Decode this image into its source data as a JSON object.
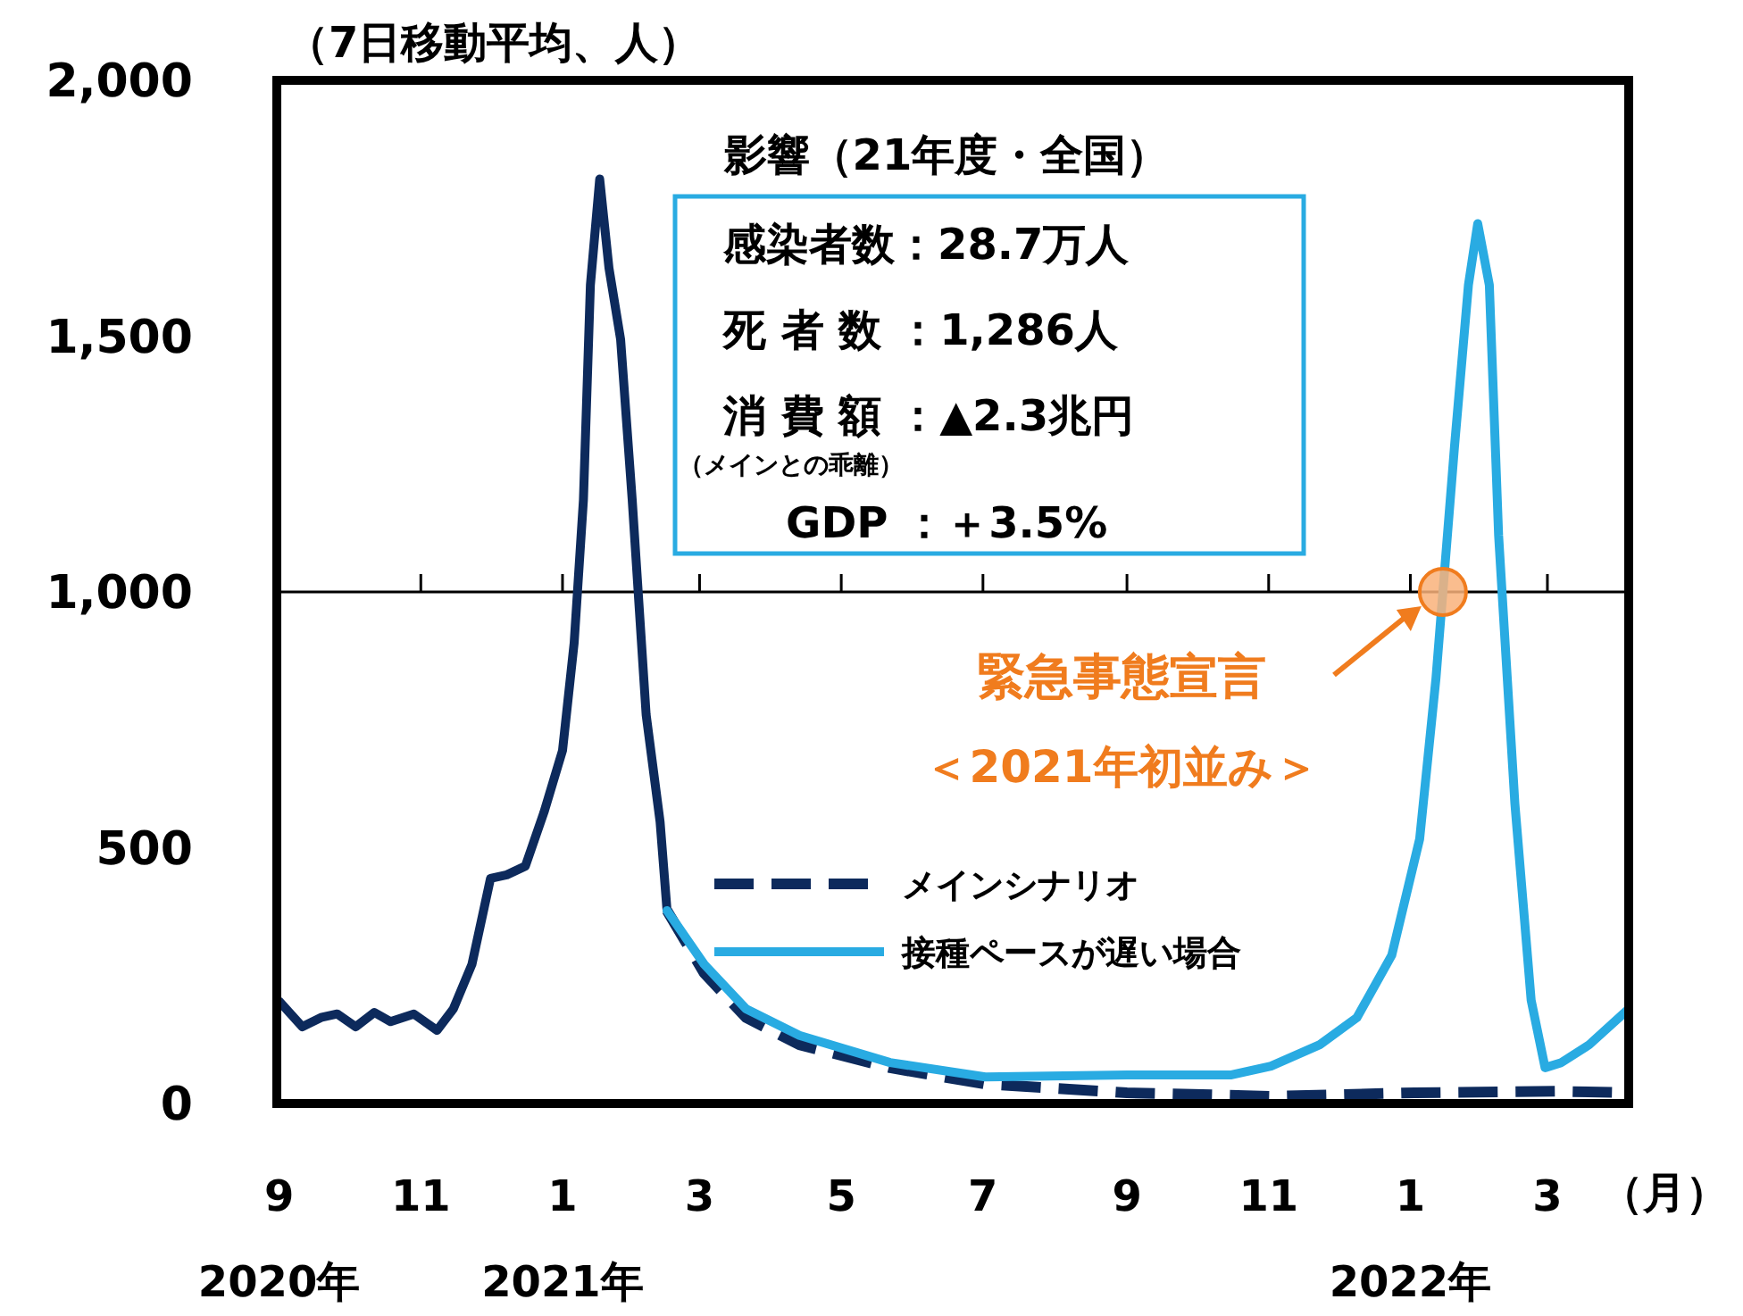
{
  "chart_data": {
    "type": "line",
    "ylabel": "（7日移動平均、人）",
    "xlim": [
      "2020-08-31",
      "2022-04-05"
    ],
    "xticks": [
      {
        "value": "2020-09-01",
        "label": "9\n2020年"
      },
      {
        "value": "2020-11-01",
        "label": "11"
      },
      {
        "value": "2021-01-01",
        "label": "1\n2021年"
      },
      {
        "value": "2021-03-01",
        "label": "3"
      },
      {
        "value": "2021-05-01",
        "label": "5"
      },
      {
        "value": "2021-07-01",
        "label": "7"
      },
      {
        "value": "2021-09-01",
        "label": "9"
      },
      {
        "value": "2021-11-01",
        "label": "11"
      },
      {
        "value": "2022-01-01",
        "label": "1\n2022年"
      },
      {
        "value": "2022-03-01",
        "label": "3"
      }
    ],
    "ylim": [
      0,
      2000
    ],
    "yticks": [
      {
        "value": 0,
        "label": "0"
      },
      {
        "value": 500,
        "label": "500"
      },
      {
        "value": 1000,
        "label": "1,000"
      },
      {
        "value": 1500,
        "label": "1,500"
      },
      {
        "value": 2000,
        "label": "2,000"
      }
    ],
    "grid": false,
    "legend": "bottom",
    "ref_lines": [
      {
        "axis": "y",
        "value": 1000,
        "color": "#000000"
      }
    ],
    "series": [
      {
        "color": "#0d2a5c",
        "line_style": "solid",
        "x": [
          "2020-09-01",
          "2020-09-11",
          "2020-09-19",
          "2020-09-26",
          "2020-10-04",
          "2020-10-12",
          "2020-10-19",
          "2020-10-29",
          "2020-11-08",
          "2020-11-15",
          "2020-11-23",
          "2020-12-01",
          "2020-12-08",
          "2020-12-16",
          "2020-12-24",
          "2021-01-01",
          "2021-01-06",
          "2021-01-10",
          "2021-01-13",
          "2021-01-17",
          "2021-01-21",
          "2021-01-26",
          "2021-01-31",
          "2021-02-06",
          "2021-02-12",
          "2021-02-15"
        ],
        "values": [
          200,
          150,
          168,
          175,
          150,
          178,
          160,
          175,
          143,
          185,
          272,
          440,
          447,
          464,
          569,
          690,
          900,
          1180,
          1600,
          1807,
          1633,
          1494,
          1180,
          760,
          551,
          377
        ]
      },
      {
        "name": "メインシナリオ",
        "color": "#0d2a5c",
        "line_style": "dashed",
        "x": [
          "2021-02-15",
          "2021-03-03",
          "2021-03-21",
          "2021-04-13",
          "2021-05-22",
          "2021-07-02",
          "2021-09-01",
          "2021-11-02",
          "2022-01-03",
          "2022-03-05",
          "2022-04-05"
        ],
        "values": [
          377,
          255,
          168,
          115,
          70,
          38,
          21,
          14,
          21,
          24,
          21
        ]
      },
      {
        "name": "接種ペースが遅い場合",
        "color": "#29abe2",
        "line_style": "solid",
        "x": [
          "2021-02-15",
          "2021-03-03",
          "2021-03-21",
          "2021-04-13",
          "2021-05-22",
          "2021-07-02",
          "2021-09-01",
          "2021-10-16",
          "2021-11-02",
          "2021-11-23",
          "2021-12-09",
          "2021-12-24",
          "2022-01-05",
          "2022-01-12",
          "2022-01-20",
          "2022-01-26",
          "2022-01-30",
          "2022-02-04",
          "2022-02-08",
          "2022-02-15",
          "2022-02-22",
          "2022-02-28",
          "2022-03-07",
          "2022-03-19",
          "2022-04-05"
        ],
        "values": [
          377,
          272,
          185,
          133,
          80,
          52,
          56,
          56,
          73,
          115,
          168,
          290,
          517,
          830,
          1284,
          1600,
          1720,
          1600,
          1110,
          586,
          202,
          70,
          80,
          115,
          185
        ]
      }
    ],
    "annotations": [
      "影響（21年度・全国）",
      "感染者数：28.7万人",
      "死 者 数 ：1,286人",
      "消 費 額 ：▲2.3兆円",
      "（メインとの乖離）",
      "GDP ：＋3.5%",
      "緊急事態宣言",
      "＜2021年初並み＞",
      "（月）"
    ]
  }
}
